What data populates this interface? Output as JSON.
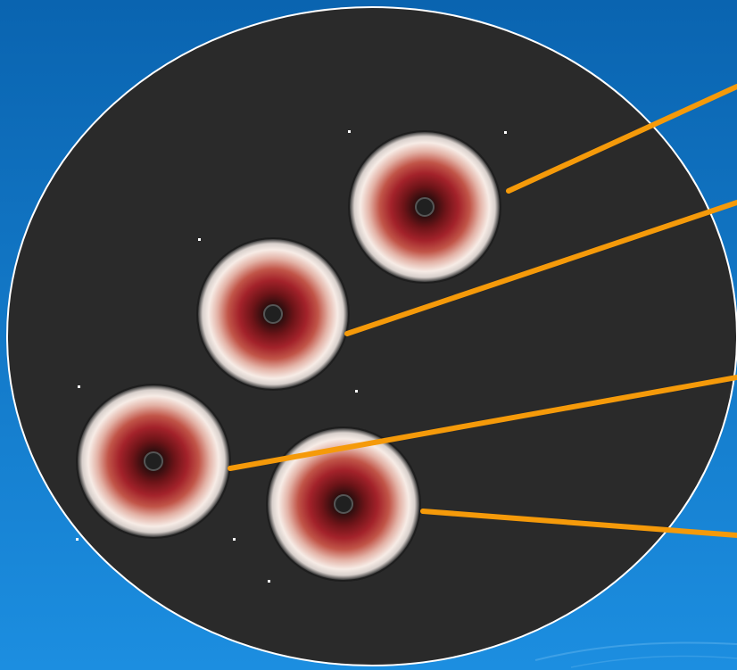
{
  "image": {
    "subject": "petri-dish",
    "colors": {
      "background_top": "#0a64b0",
      "background_bottom": "#1c8ee0",
      "dish_fill": "#2a2a2a",
      "dish_rim": "#ffffff",
      "pointer_line": "#f59a0a",
      "zone_outer": "#f7ece6",
      "zone_mid": "#c0504a",
      "zone_inner": "#8a1a1f",
      "zone_core": "#1a0a0a"
    },
    "zones": [
      {
        "name": "zone-1"
      },
      {
        "name": "zone-2"
      },
      {
        "name": "zone-3"
      },
      {
        "name": "zone-4"
      }
    ],
    "pointers": [
      {
        "name": "pointer-1"
      },
      {
        "name": "pointer-2"
      },
      {
        "name": "pointer-3"
      },
      {
        "name": "pointer-4"
      }
    ]
  }
}
